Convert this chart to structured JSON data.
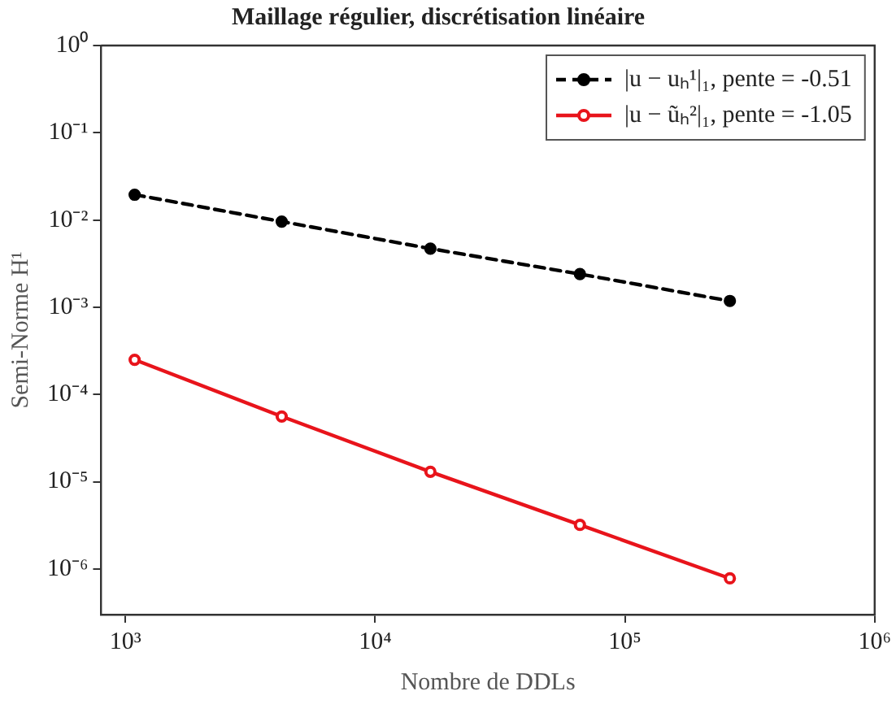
{
  "chart_data": {
    "type": "line",
    "title": "Maillage régulier, discrétisation linéaire",
    "xlabel": "Nombre de DDLs",
    "ylabel": "Semi-Norme H¹",
    "x": [
      1089,
      4225,
      16641,
      66049,
      263169
    ],
    "series": [
      {
        "name": "|u − uₕ¹|₁, pente = -0.51",
        "color": "#000000",
        "values": [
          0.0195,
          0.0096,
          0.0047,
          0.0024,
          0.00118
        ],
        "line_style": "dashed",
        "marker": "circle"
      },
      {
        "name": "|u − ũₕ²|₁, pente = -1.05",
        "color": "#e8141b",
        "values": [
          0.00025,
          5.6e-05,
          1.3e-05,
          3.2e-06,
          7.8e-07
        ],
        "line_style": "solid",
        "marker": "circle"
      }
    ],
    "log": "xy",
    "xlim": [
      800,
      1000000
    ],
    "ylim": [
      3e-07,
      1
    ],
    "xticks": [
      {
        "value": 1000,
        "label": "10³"
      },
      {
        "value": 10000,
        "label": "10⁴"
      },
      {
        "value": 100000,
        "label": "10⁵"
      },
      {
        "value": 1000000,
        "label": "10⁶"
      }
    ],
    "yticks": [
      {
        "value": 1e-06,
        "label": "10⁻⁶"
      },
      {
        "value": 1e-05,
        "label": "10⁻⁵"
      },
      {
        "value": 0.0001,
        "label": "10⁻⁴"
      },
      {
        "value": 0.001,
        "label": "10⁻³"
      },
      {
        "value": 0.01,
        "label": "10⁻²"
      },
      {
        "value": 0.1,
        "label": "10⁻¹"
      },
      {
        "value": 1,
        "label": "10⁰"
      }
    ],
    "grid": false,
    "legend": "top right"
  }
}
